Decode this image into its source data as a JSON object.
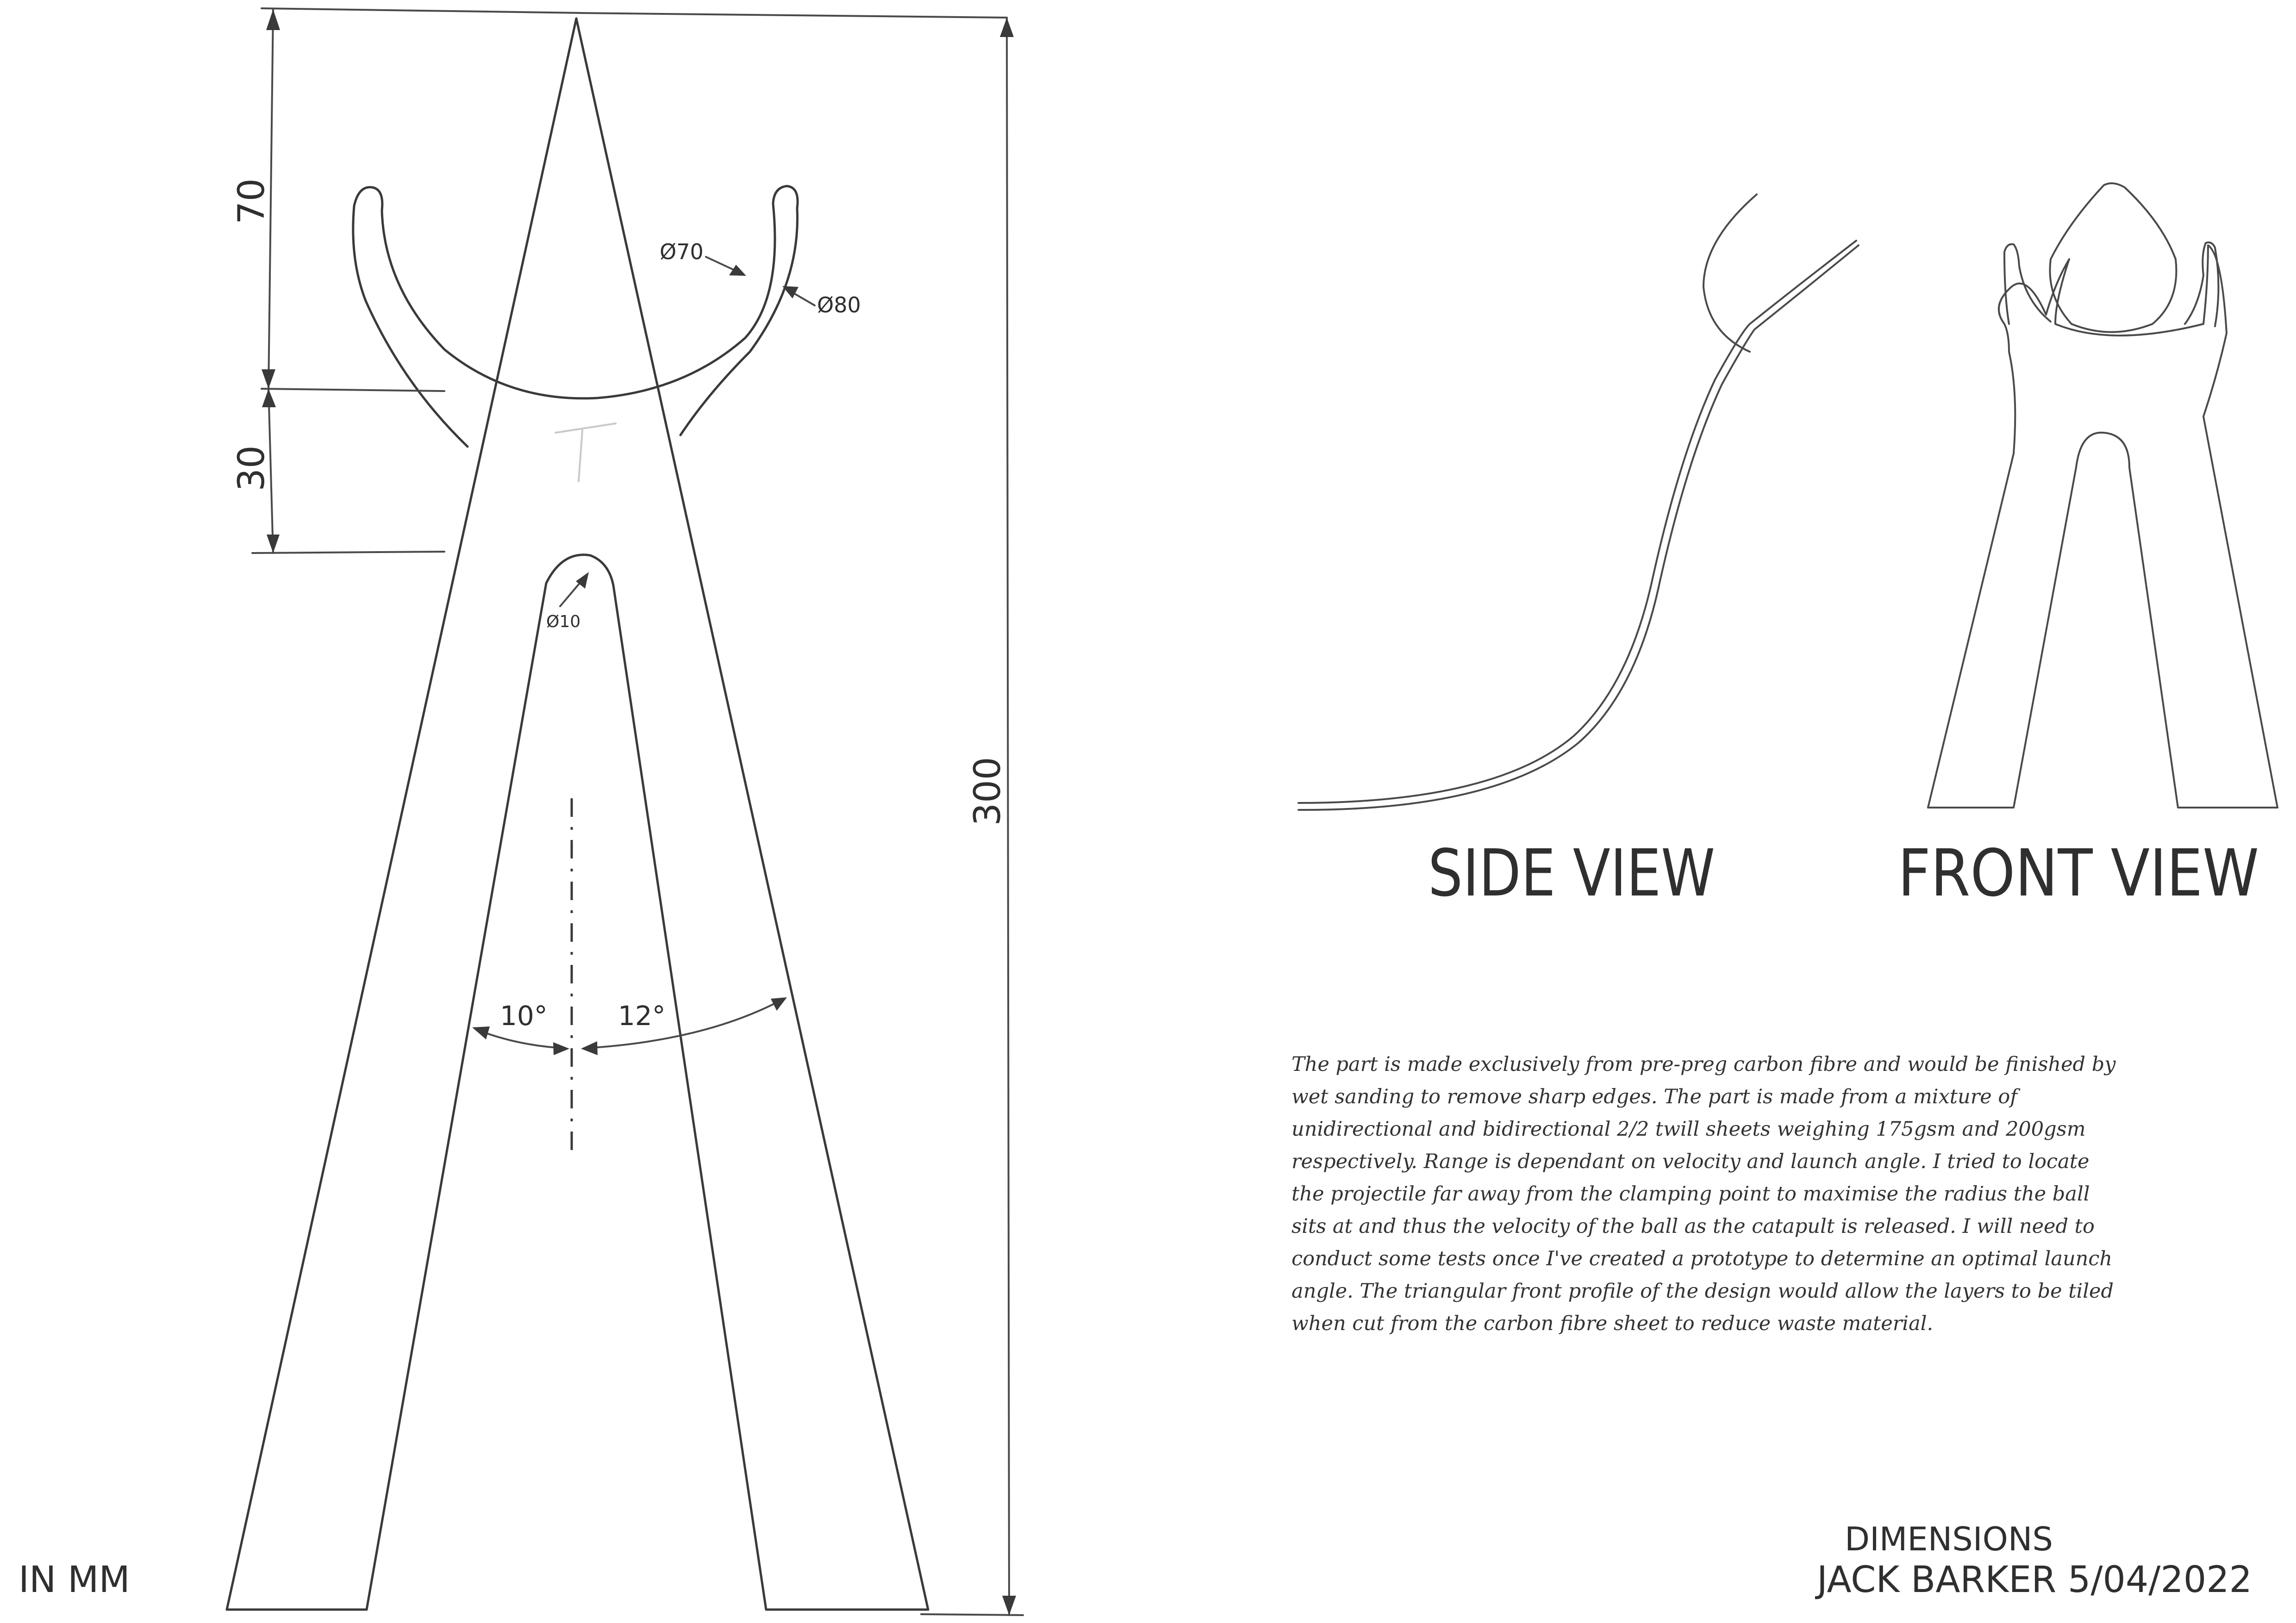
{
  "dimensions": {
    "tip_to_base": "300",
    "upper_height": "70",
    "cradle_height": "30",
    "inner_cradle_dia": "Ø70",
    "outer_cradle_dia": "Ø80",
    "slot_radius_dia": "Ø10",
    "left_angle": "10°",
    "right_angle": "12°"
  },
  "views": {
    "side_label": "SIDE VIEW",
    "front_label": "FRONT VIEW"
  },
  "notes": {
    "lines": [
      "The part is made exclusively from pre-preg carbon fibre and would be finished by",
      "wet sanding to remove sharp edges. The part is made from a mixture of",
      "unidirectional and bidirectional 2/2 twill sheets weighing 175gsm and 200gsm",
      "respectively. Range is dependant on velocity and launch angle. I tried to locate",
      "the projectile far away from the clamping point to maximise the radius the ball",
      "sits at and thus the velocity of the ball as the catapult is released. I will need to",
      "conduct some tests once I've created a prototype to determine an optimal launch",
      "angle. The triangular front profile of the design would allow the layers to be tiled",
      "when cut from the carbon fibre sheet to reduce waste material."
    ]
  },
  "title_block": {
    "units": "IN MM",
    "title": "DIMENSIONS",
    "author_date": "JACK BARKER  5/04/2022"
  }
}
